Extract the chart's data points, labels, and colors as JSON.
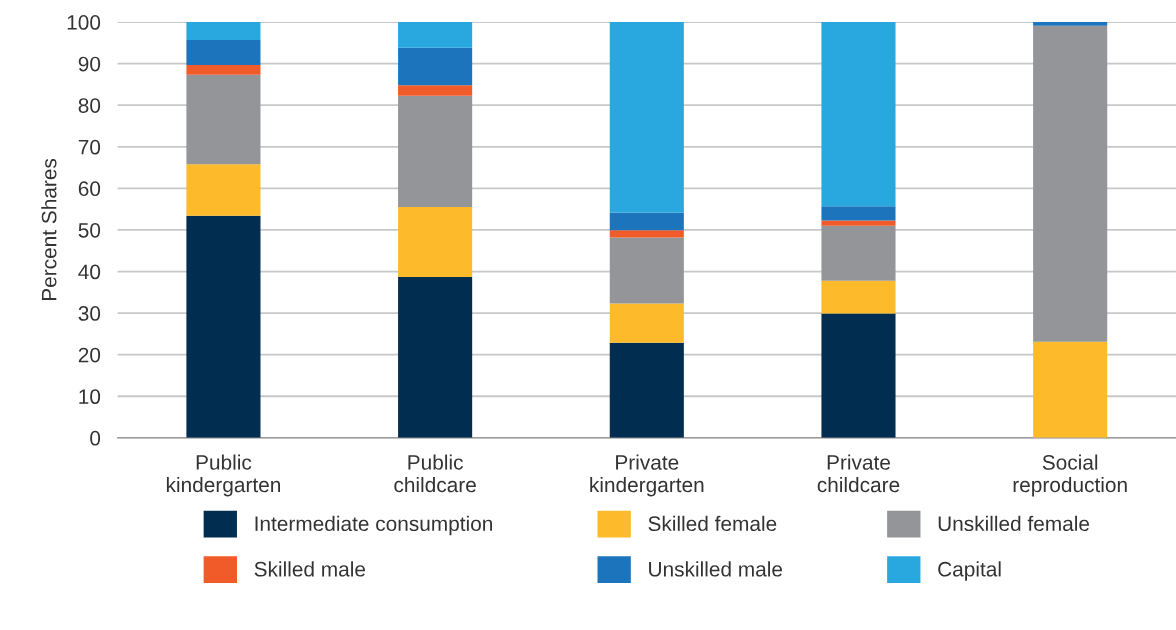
{
  "chart_data": {
    "type": "bar",
    "stacked": true,
    "ylabel": "Percent Shares",
    "categories": [
      "Public\nkindergarten",
      "Public\nchildcare",
      "Private\nkindergarten",
      "Private\nchildcare",
      "Social\nreproduction"
    ],
    "series": [
      {
        "name": "Intermediate consumption",
        "color": "#002d50",
        "values": [
          53.4,
          38.7,
          22.9,
          29.9,
          0
        ]
      },
      {
        "name": "Skilled female",
        "color": "#fdba2b",
        "values": [
          12.4,
          16.8,
          9.4,
          7.9,
          23.1
        ]
      },
      {
        "name": "Unskilled female",
        "color": "#949599",
        "values": [
          21.5,
          26.8,
          15.9,
          13.2,
          76.0
        ]
      },
      {
        "name": "Skilled male",
        "color": "#f15a29",
        "values": [
          2.4,
          2.5,
          1.7,
          1.3,
          0
        ]
      },
      {
        "name": "Unskilled male",
        "color": "#1c75bc",
        "values": [
          6.0,
          9.0,
          4.3,
          3.4,
          1.0
        ]
      },
      {
        "name": "Capital",
        "color": "#29a8e0",
        "values": [
          4.3,
          6.2,
          45.8,
          44.3,
          0
        ]
      }
    ],
    "ylim": [
      0,
      100
    ],
    "yticks": [
      0,
      10,
      20,
      30,
      40,
      50,
      60,
      70,
      80,
      90,
      100
    ],
    "grid": "y",
    "legend": "bottom"
  }
}
